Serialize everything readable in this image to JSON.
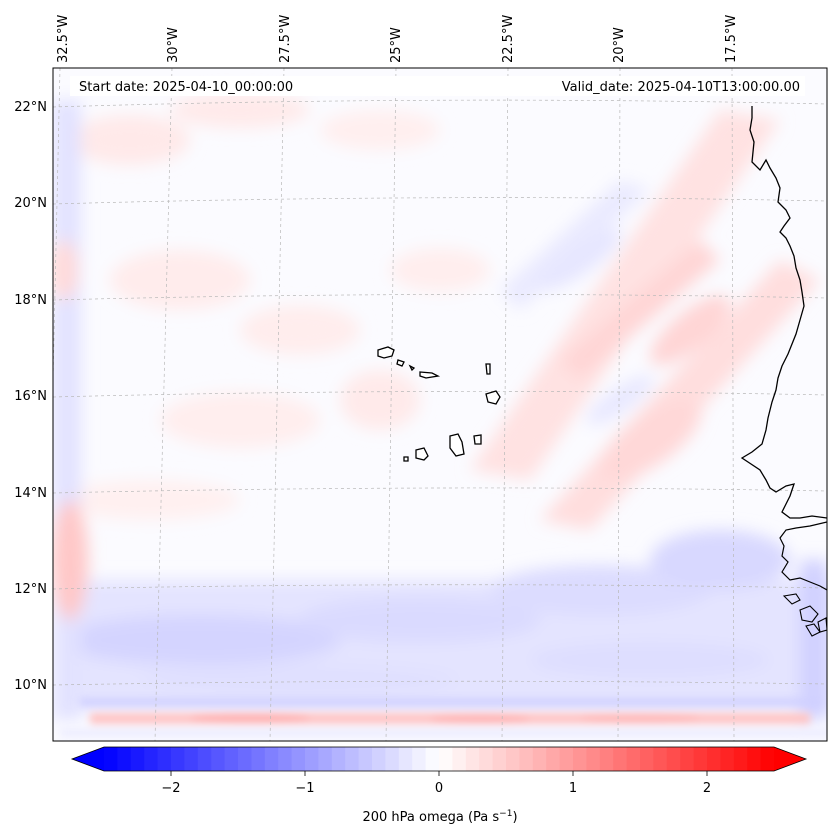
{
  "map": {
    "header_start": "Start date: 2025-04-10_00:00:00",
    "header_valid": "Valid_date: 2025-04-10T13:00:00.00",
    "lon_labels": [
      "32.5°W",
      "30°W",
      "27.5°W",
      "25°W",
      "22.5°W",
      "20°W",
      "17.5°W"
    ],
    "lat_labels": [
      "22°N",
      "20°N",
      "18°N",
      "16°N",
      "14°N",
      "12°N",
      "10°N"
    ],
    "field": "200 hPa omega",
    "colors": {
      "negative": "#0000ff",
      "zero": "#ffffff",
      "positive": "#ff0000",
      "coast": "#000000",
      "grid": "#b0b0b0"
    }
  },
  "colorbar": {
    "ticks": [
      "−2",
      "−1",
      "0",
      "1",
      "2"
    ],
    "label_main": "200 hPa omega (Pa s",
    "label_exp": "−1",
    "label_end": ")"
  }
}
